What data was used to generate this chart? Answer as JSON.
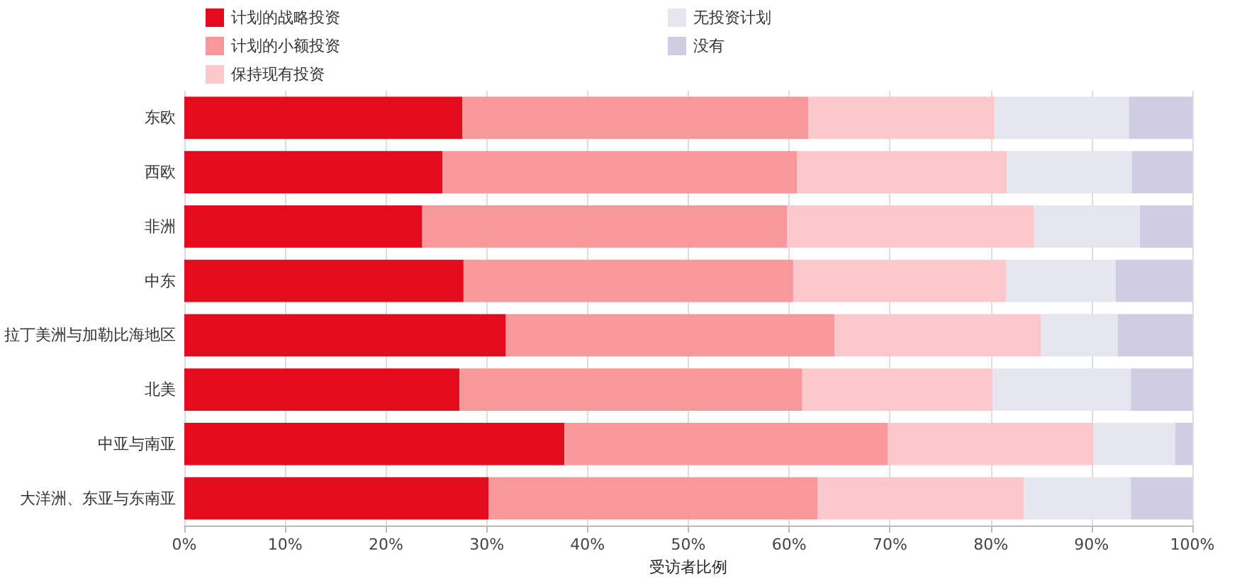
{
  "chart_data": {
    "type": "bar",
    "orientation": "horizontal",
    "stacked": true,
    "xlabel": "受访者比例",
    "categories": [
      "东欧",
      "西欧",
      "非洲",
      "中东",
      "拉丁美洲与加勒比海地区",
      "北美",
      "中亚与南亚",
      "大洋洲、东亚与东南亚"
    ],
    "series": [
      {
        "name": "计划的战略投资",
        "color": "#e30b1c",
        "values": [
          27.6,
          25.6,
          23.6,
          27.7,
          31.9,
          27.3,
          37.7,
          30.2
        ]
      },
      {
        "name": "计划的小额投资",
        "color": "#f8989b",
        "values": [
          34.3,
          35.2,
          36.2,
          32.7,
          32.6,
          34.0,
          32.1,
          32.6
        ]
      },
      {
        "name": "保持现有投资",
        "color": "#fcc8cc",
        "values": [
          18.5,
          20.8,
          24.5,
          21.1,
          20.5,
          18.9,
          20.4,
          20.5
        ]
      },
      {
        "name": "无投资计划",
        "color": "#e6e6f0",
        "values": [
          13.3,
          12.4,
          10.5,
          10.9,
          7.6,
          13.7,
          8.1,
          10.6
        ]
      },
      {
        "name": "没有",
        "color": "#d0cde3",
        "values": [
          6.3,
          6.0,
          5.2,
          7.6,
          7.4,
          6.1,
          1.7,
          6.1
        ]
      }
    ],
    "xlim": [
      0,
      100
    ],
    "xticks": [
      {
        "value": 0,
        "label": "0%"
      },
      {
        "value": 10,
        "label": "10%"
      },
      {
        "value": 20,
        "label": "20%"
      },
      {
        "value": 30,
        "label": "30%"
      },
      {
        "value": 40,
        "label": "40%"
      },
      {
        "value": 50,
        "label": "50%"
      },
      {
        "value": 60,
        "label": "60%"
      },
      {
        "value": 70,
        "label": "70%"
      },
      {
        "value": 80,
        "label": "80%"
      },
      {
        "value": 90,
        "label": "90%"
      },
      {
        "value": 100,
        "label": "100%"
      }
    ],
    "grid": "x",
    "legend": "top left"
  }
}
